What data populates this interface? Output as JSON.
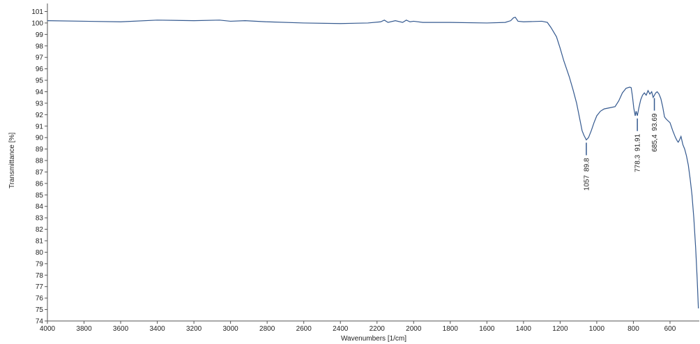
{
  "chart_data": {
    "type": "line",
    "x_label": "Wavenumbers [1/cm]",
    "y_label": "Transmittance [%]",
    "xlim": [
      4000,
      440
    ],
    "ylim": [
      74,
      101.7
    ],
    "xticks": [
      4000,
      3800,
      3600,
      3400,
      3200,
      3000,
      2800,
      2600,
      2400,
      2200,
      2000,
      1800,
      1600,
      1400,
      1200,
      1000,
      800,
      600
    ],
    "yticks": [
      74,
      75,
      76,
      77,
      78,
      79,
      80,
      81,
      82,
      83,
      84,
      85,
      86,
      87,
      88,
      89,
      90,
      91,
      92,
      93,
      94,
      95,
      96,
      97,
      98,
      99,
      100,
      101
    ],
    "series": [
      {
        "color": "#34598f",
        "x": [
          4000,
          3800,
          3600,
          3400,
          3200,
          3060,
          3000,
          2920,
          2800,
          2600,
          2400,
          2250,
          2180,
          2160,
          2140,
          2100,
          2060,
          2040,
          2020,
          2000,
          1950,
          1800,
          1600,
          1500,
          1470,
          1455,
          1445,
          1430,
          1400,
          1300,
          1270,
          1250,
          1220,
          1200,
          1180,
          1150,
          1130,
          1110,
          1095,
          1080,
          1070,
          1057,
          1045,
          1030,
          1015,
          1000,
          980,
          960,
          930,
          900,
          880,
          860,
          840,
          820,
          812,
          805,
          798,
          790,
          785,
          778.3,
          770,
          760,
          750,
          740,
          730,
          720,
          710,
          700,
          692,
          685.4,
          678,
          670,
          660,
          650,
          640,
          630,
          620,
          600,
          585,
          570,
          560,
          555,
          548,
          540,
          530,
          520,
          510,
          500,
          490,
          480,
          470,
          460,
          452,
          445
        ],
        "values": [
          100.2,
          100.15,
          100.1,
          100.25,
          100.2,
          100.25,
          100.15,
          100.2,
          100.1,
          100.0,
          99.95,
          100.0,
          100.1,
          100.25,
          100.05,
          100.2,
          100.05,
          100.25,
          100.1,
          100.15,
          100.05,
          100.05,
          100.0,
          100.05,
          100.2,
          100.45,
          100.5,
          100.15,
          100.1,
          100.15,
          100.05,
          99.6,
          98.8,
          97.8,
          96.7,
          95.3,
          94.2,
          93.0,
          91.8,
          90.6,
          90.2,
          89.8,
          90.0,
          90.6,
          91.3,
          91.9,
          92.3,
          92.5,
          92.6,
          92.7,
          93.2,
          93.9,
          94.3,
          94.4,
          94.35,
          93.6,
          92.6,
          91.9,
          92.3,
          91.91,
          92.6,
          93.3,
          93.7,
          93.9,
          93.7,
          94.1,
          93.8,
          94.0,
          93.5,
          93.69,
          93.9,
          94.0,
          93.8,
          93.4,
          92.7,
          91.8,
          91.6,
          91.3,
          90.6,
          90.0,
          89.7,
          89.6,
          89.8,
          90.1,
          89.4,
          89.0,
          88.4,
          87.6,
          86.4,
          85.0,
          83.0,
          80.4,
          77.8,
          75.1
        ]
      }
    ],
    "annotations": [
      {
        "x": 1057,
        "y": 89.8
      },
      {
        "x": 778.3,
        "y": 91.91
      },
      {
        "x": 685.4,
        "x_label": "685,4",
        "y": 93.69
      }
    ]
  }
}
